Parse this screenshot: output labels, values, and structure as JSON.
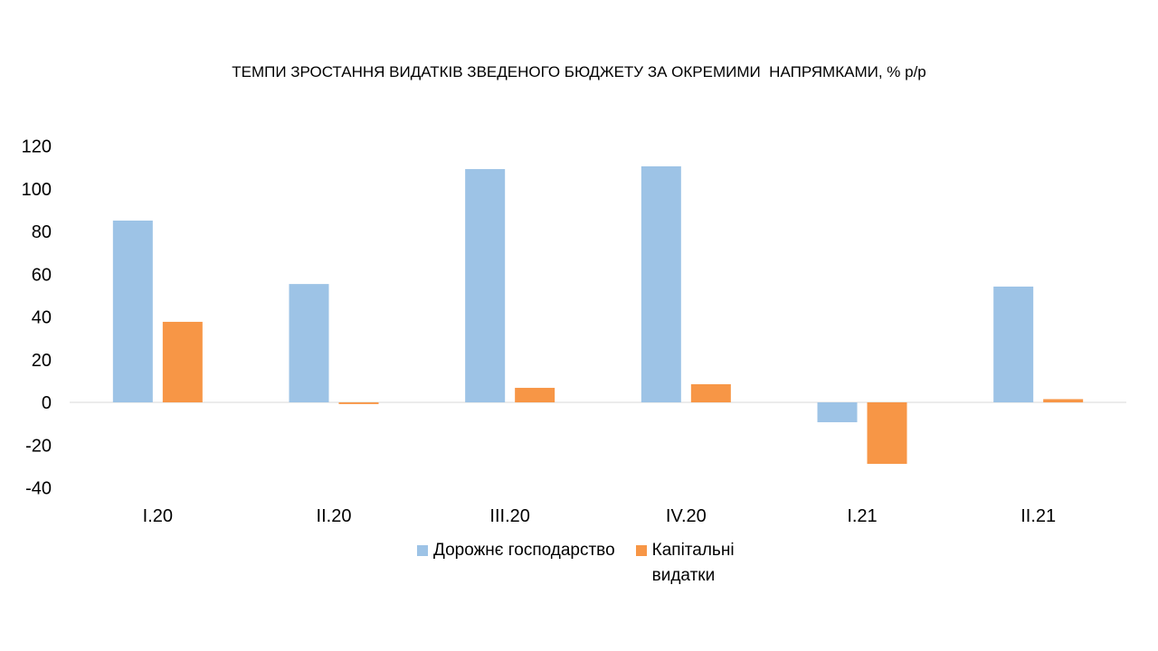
{
  "chart_data": {
    "type": "bar",
    "title": "ТЕМПИ ЗРОСТАННЯ ВИДАТКІВ ЗВЕДЕНОГО БЮДЖЕТУ ЗА ОКРЕМИМИ  НАПРЯМКАМИ, % р/р",
    "categories": [
      "I.20",
      "II.20",
      "III.20",
      "IV.20",
      "I.21",
      "II.21"
    ],
    "series": [
      {
        "name": "Дорожнє господарство",
        "color": "#9DC3E6",
        "values": [
          85.1,
          55.4,
          109.2,
          110.5,
          -9.3,
          54.2
        ]
      },
      {
        "name": "Капітальні видатки",
        "color": "#F79646",
        "values": [
          37.7,
          -0.8,
          6.8,
          8.5,
          -28.8,
          1.5
        ]
      }
    ],
    "ylim": [
      -40,
      120
    ],
    "yticks": [
      120,
      100,
      80,
      60,
      40,
      20,
      0,
      -20,
      -40
    ],
    "grid": false,
    "legend": "bottom"
  }
}
